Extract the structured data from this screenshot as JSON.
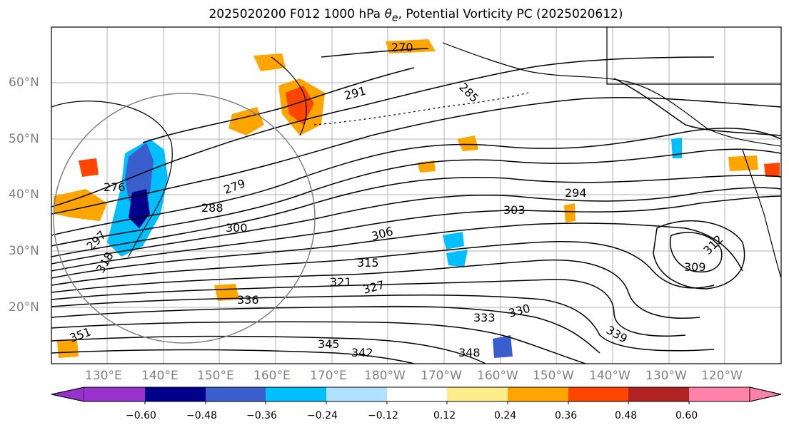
{
  "title": {
    "run": "2025020200 F012 1000 hPa",
    "theta_symbol": "θ",
    "theta_sub": "e",
    "rest": ", Potential Vorticity PC (2025020612)"
  },
  "axes": {
    "lat_labels": [
      "60°N",
      "50°N",
      "40°N",
      "30°N",
      "20°N"
    ],
    "lon_labels": [
      "130°E",
      "140°E",
      "150°E",
      "160°E",
      "170°E",
      "180°W",
      "170°W",
      "160°W",
      "150°W",
      "140°W",
      "130°W",
      "120°W"
    ]
  },
  "contour_labels": [
    "291",
    "285",
    "270",
    "276",
    "279",
    "288",
    "300",
    "303",
    "306",
    "294",
    "309",
    "315",
    "321",
    "327",
    "330",
    "333",
    "336",
    "339",
    "342",
    "345",
    "348",
    "351",
    "312",
    "318",
    "297"
  ],
  "colorbar": {
    "ticks": [
      "−0.60",
      "−0.48",
      "−0.36",
      "−0.24",
      "−0.12",
      "0.12",
      "0.24",
      "0.36",
      "0.48",
      "0.60"
    ],
    "colors": [
      "#9932cc",
      "#00008b",
      "#3a5fcd",
      "#00bfff",
      "#b0e2ff",
      "#ffffff",
      "#ffec8b",
      "#ffa500",
      "#ff4500",
      "#b22222",
      "#ff82ab"
    ]
  },
  "map_colors": {
    "coast": "#000000",
    "contour": "#000000",
    "grid": "#b0b0b0",
    "circle": "#808080"
  }
}
